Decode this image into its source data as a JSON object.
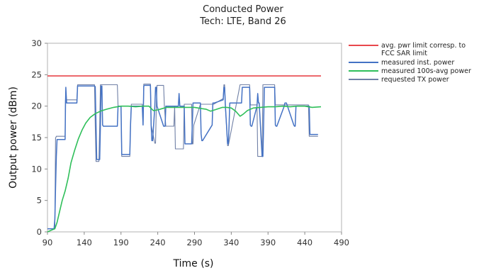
{
  "chart_data": {
    "type": "line",
    "title": "Conducted Power",
    "subtitle": "Tech: LTE, Band 26",
    "xlabel": "Time (s)",
    "ylabel": "Output power (dBm)",
    "xlim": [
      90,
      490
    ],
    "ylim": [
      0,
      30
    ],
    "xticks": [
      90,
      140,
      190,
      240,
      290,
      340,
      390,
      440,
      490
    ],
    "yticks": [
      0,
      5,
      10,
      15,
      20,
      25,
      30
    ],
    "grid": false,
    "legend_position": "right",
    "series": [
      {
        "name": "avg. pwr limit corresp. to FCC SAR limit",
        "legend_lines": [
          "avg. pwr limit corresp. to",
          "FCC SAR limit"
        ],
        "color": "#e8474c",
        "x": [
          90,
          462
        ],
        "y": [
          24.8,
          24.8
        ]
      },
      {
        "name": "measured inst. power",
        "legend_lines": [
          "measured inst. power"
        ],
        "color": "#4472c4",
        "x": [
          90,
          99,
          100,
          101,
          102,
          103,
          114,
          114.5,
          115,
          116,
          117,
          130,
          131,
          135,
          136,
          154,
          155,
          156,
          157,
          161,
          162,
          163,
          164,
          165,
          166,
          185,
          186,
          190,
          191,
          202,
          203,
          204,
          205,
          219,
          220,
          221,
          222,
          230,
          231,
          232,
          233,
          236,
          237,
          238,
          239,
          248,
          249,
          250,
          251,
          267,
          268,
          269,
          270,
          275,
          276,
          277,
          278,
          286,
          287,
          288,
          289,
          298,
          299,
          300,
          301,
          314,
          315,
          316,
          317,
          329,
          330,
          331,
          332,
          335,
          336,
          337,
          338,
          353,
          354,
          355,
          356,
          365,
          366,
          367,
          368,
          375,
          376,
          377,
          378,
          382,
          383,
          384,
          385,
          399,
          400,
          401,
          402,
          412,
          413,
          414,
          415,
          425,
          426,
          427,
          428,
          445,
          446,
          447,
          448,
          458
        ],
        "y": [
          0.5,
          0.5,
          2,
          7,
          12,
          14.7,
          14.7,
          20,
          23,
          20.5,
          20.5,
          20.5,
          23.2,
          23.2,
          23.2,
          23.2,
          23.1,
          17,
          11.5,
          11.5,
          17,
          23.2,
          23.2,
          17,
          16.8,
          16.8,
          20,
          20,
          12.3,
          12.3,
          17,
          20,
          20,
          20,
          17,
          23.2,
          23.3,
          23.3,
          17,
          14.5,
          14.5,
          20,
          23,
          23,
          20,
          16.8,
          16.8,
          16.8,
          20,
          20,
          20,
          22,
          20,
          20,
          20,
          14,
          14,
          14,
          17,
          20.5,
          20.5,
          20.5,
          15.6,
          14.5,
          14.5,
          17,
          20.5,
          20.5,
          20.5,
          21,
          23,
          23,
          20,
          14,
          14,
          17,
          20.5,
          20.5,
          20.5,
          23,
          23,
          23,
          17,
          16.8,
          16.8,
          20,
          22,
          20.5,
          20.5,
          12,
          12,
          17,
          23,
          23,
          17,
          16.8,
          16.8,
          20,
          20.5,
          20.5,
          20.5,
          17,
          16.8,
          16.8,
          20,
          20,
          20,
          15.5,
          15.5,
          15.5
        ]
      },
      {
        "name": "measured 100s-avg power",
        "legend_lines": [
          "measured 100s-avg power"
        ],
        "color": "#2fbf5a",
        "x": [
          90,
          96,
          100,
          103,
          106,
          110,
          114,
          118,
          122,
          127,
          132,
          137,
          142,
          148,
          155,
          162,
          170,
          180,
          190,
          200,
          210,
          220,
          228,
          234,
          240,
          246,
          252,
          260,
          270,
          280,
          290,
          300,
          306,
          312,
          320,
          328,
          334,
          340,
          346,
          352,
          356,
          362,
          370,
          380,
          390,
          400,
          410,
          420,
          430,
          440,
          450,
          462
        ],
        "y": [
          0,
          0.3,
          0.5,
          1.5,
          3,
          5,
          6.5,
          8.5,
          11,
          13,
          14.8,
          16.2,
          17.3,
          18.2,
          18.8,
          19.2,
          19.5,
          19.8,
          20,
          20,
          19.9,
          20,
          20,
          19.3,
          19.4,
          19.6,
          19.8,
          19.8,
          19.8,
          19.8,
          19.8,
          19.6,
          19.5,
          19.2,
          19.5,
          19.8,
          19.8,
          19.7,
          19.2,
          18.4,
          18.7,
          19.3,
          19.7,
          19.8,
          19.9,
          19.9,
          20,
          19.9,
          20,
          20,
          19.8,
          19.9
        ]
      },
      {
        "name": "requested TX power",
        "legend_lines": [
          "requested TX power"
        ],
        "color": "#7080a6",
        "x": [
          90,
          100,
          101,
          101.5,
          102,
          103,
          114,
          114.5,
          115,
          130,
          131,
          153,
          154,
          155,
          156,
          160,
          161,
          162,
          163,
          185,
          186,
          190,
          191,
          202,
          203,
          204,
          205,
          219,
          220,
          221,
          222,
          230,
          231,
          236,
          237,
          238,
          239,
          248,
          249,
          251,
          252,
          262,
          263,
          264,
          265,
          275,
          276,
          286,
          287,
          288,
          289,
          298,
          299,
          315,
          316,
          329,
          330,
          331,
          332,
          335,
          336,
          352,
          353,
          365,
          366,
          375,
          376,
          382,
          383,
          399,
          400,
          412,
          413,
          425,
          426,
          445,
          446,
          458
        ],
        "y": [
          0.5,
          0.5,
          15,
          15,
          15.2,
          15.2,
          15.2,
          21,
          21,
          21,
          23.4,
          23.4,
          23.4,
          17,
          11.2,
          11.2,
          17,
          23.4,
          23.4,
          23.4,
          20,
          20,
          12,
          12,
          17,
          20.3,
          20.3,
          20.3,
          17,
          23.5,
          23.5,
          23.5,
          17,
          14.1,
          14.1,
          20,
          23.3,
          23.3,
          20,
          16.8,
          16.8,
          16.8,
          20,
          13.2,
          13.2,
          13.2,
          20.3,
          20.3,
          14,
          14,
          17,
          20.3,
          20.3,
          20.3,
          20.3,
          21.2,
          23.4,
          23.4,
          20,
          13.7,
          13.7,
          23.4,
          23.4,
          23.4,
          20.2,
          20.2,
          12,
          12,
          23.4,
          23.4,
          20.2,
          20.2,
          20.2,
          20.2,
          20.2,
          20.2,
          15.2,
          15.2
        ]
      }
    ]
  }
}
